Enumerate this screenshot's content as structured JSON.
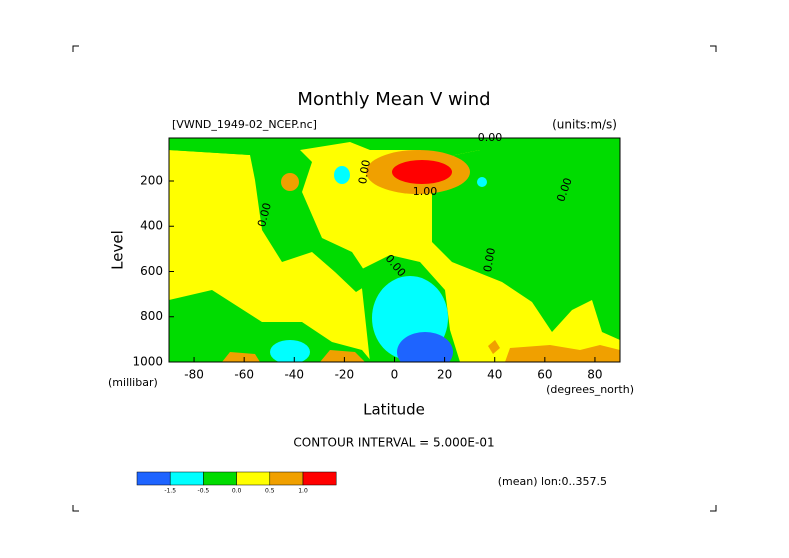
{
  "chart_data": {
    "type": "contour",
    "title": "Monthly Mean V wind",
    "source": "[VWND_1949-02_NCEP.nc]",
    "units": "(units:m/s)",
    "x_label": "Latitude",
    "y_label": "Level",
    "x_unit": "(degrees_north)",
    "y_unit": "(millibar)",
    "xlim": [
      -90,
      90
    ],
    "xticks": [
      -80,
      -60,
      -40,
      -20,
      0,
      20,
      40,
      60,
      80
    ],
    "ylim": [
      1000,
      10
    ],
    "yticks": [
      200,
      400,
      600,
      800,
      1000
    ],
    "annotation": "CONTOUR INTERVAL = 5.000E-01",
    "footer": "(mean) lon:0..357.5",
    "contour_labels": [
      {
        "value": 0,
        "label": "0.00"
      },
      {
        "value": 0,
        "label": "0.00"
      },
      {
        "value": 1,
        "label": "1.00"
      },
      {
        "value": 0,
        "label": "0.00"
      },
      {
        "value": 0,
        "label": "0.00"
      },
      {
        "value": 0,
        "label": "0.00"
      },
      {
        "value": 0,
        "label": "0.00"
      }
    ],
    "colorbar": {
      "colors": [
        "#1e64ff",
        "#00ffff",
        "#00dc00",
        "#ffff00",
        "#f0a000",
        "#ff0000"
      ],
      "levels": [
        -1.5,
        -0.5,
        {
          "value": 0,
          "label": "0.0"
        },
        0.5,
        {
          "value": 1,
          "label": "1.0"
        }
      ]
    }
  }
}
